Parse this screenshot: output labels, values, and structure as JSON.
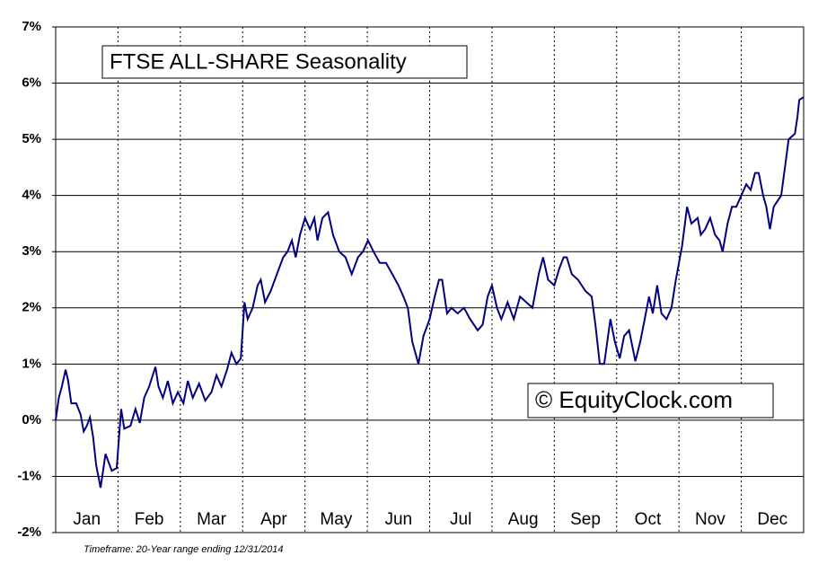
{
  "chart_data": {
    "type": "line",
    "title": "FTSE ALL-SHARE Seasonality",
    "watermark": "© EquityClock.com",
    "footnote": "Timeframe: 20-Year range ending 12/31/2014",
    "xlim": [
      0,
      12
    ],
    "xticks": [
      {
        "value": 0.5,
        "label": "Jan"
      },
      {
        "value": 1.5,
        "label": "Feb"
      },
      {
        "value": 2.5,
        "label": "Mar"
      },
      {
        "value": 3.5,
        "label": "Apr"
      },
      {
        "value": 4.5,
        "label": "May"
      },
      {
        "value": 5.5,
        "label": "Jun"
      },
      {
        "value": 6.5,
        "label": "Jul"
      },
      {
        "value": 7.5,
        "label": "Aug"
      },
      {
        "value": 8.5,
        "label": "Sep"
      },
      {
        "value": 9.5,
        "label": "Oct"
      },
      {
        "value": 10.5,
        "label": "Nov"
      },
      {
        "value": 11.5,
        "label": "Dec"
      }
    ],
    "xgrid": [
      1,
      2,
      3,
      4,
      5,
      6,
      7,
      8,
      9,
      10,
      11
    ],
    "ylim": [
      -2,
      7
    ],
    "yticks": [
      {
        "value": -2,
        "label": "-2%"
      },
      {
        "value": -1,
        "label": "-1%"
      },
      {
        "value": 0,
        "label": "0%"
      },
      {
        "value": 1,
        "label": "1%"
      },
      {
        "value": 2,
        "label": "2%"
      },
      {
        "value": 3,
        "label": "3%"
      },
      {
        "value": 4,
        "label": "4%"
      },
      {
        "value": 5,
        "label": "5%"
      },
      {
        "value": 6,
        "label": "6%"
      },
      {
        "value": 7,
        "label": "7%"
      }
    ],
    "grid": true,
    "series": [
      {
        "color": "#000080",
        "x": [
          0,
          0.05,
          0.1,
          0.16,
          0.2,
          0.25,
          0.33,
          0.4,
          0.45,
          0.5,
          0.55,
          0.6,
          0.65,
          0.72,
          0.76,
          0.8,
          0.85,
          0.9,
          0.98,
          1.05,
          1.1,
          1.2,
          1.28,
          1.35,
          1.42,
          1.5,
          1.6,
          1.65,
          1.72,
          1.8,
          1.88,
          1.96,
          2.05,
          2.12,
          2.2,
          2.3,
          2.4,
          2.5,
          2.58,
          2.66,
          2.75,
          2.82,
          2.9,
          2.97,
          3.03,
          3.08,
          3.16,
          3.24,
          3.29,
          3.36,
          3.45,
          3.55,
          3.65,
          3.72,
          3.79,
          3.85,
          3.92,
          4.0,
          4.08,
          4.15,
          4.2,
          4.28,
          4.37,
          4.45,
          4.55,
          4.65,
          4.75,
          4.85,
          4.93,
          5.01,
          5.1,
          5.2,
          5.3,
          5.4,
          5.5,
          5.58,
          5.65,
          5.72,
          5.82,
          5.9,
          6.0,
          6.08,
          6.15,
          6.2,
          6.28,
          6.35,
          6.45,
          6.55,
          6.65,
          6.77,
          6.85,
          6.93,
          7.0,
          7.08,
          7.15,
          7.25,
          7.35,
          7.45,
          7.55,
          7.65,
          7.75,
          7.82,
          7.9,
          8.0,
          8.08,
          8.15,
          8.2,
          8.28,
          8.38,
          8.5,
          8.6,
          8.66,
          8.73,
          8.8,
          8.9,
          8.97,
          9.05,
          9.12,
          9.2,
          9.3,
          9.38,
          9.45,
          9.52,
          9.58,
          9.65,
          9.72,
          9.8,
          9.88,
          9.95,
          10.05,
          10.13,
          10.2,
          10.3,
          10.35,
          10.42,
          10.5,
          10.58,
          10.65,
          10.7,
          10.78,
          10.85,
          10.92,
          11.0,
          11.08,
          11.15,
          11.22,
          11.28,
          11.35,
          11.4,
          11.46,
          11.52,
          11.58,
          11.64,
          11.7,
          11.76,
          11.86,
          11.9,
          11.93,
          12
        ],
        "values": [
          0,
          0.4,
          0.6,
          0.9,
          0.7,
          0.3,
          0.3,
          0.1,
          -0.2,
          -0.1,
          0.05,
          -0.3,
          -0.8,
          -1.2,
          -0.9,
          -0.6,
          -0.75,
          -0.9,
          -0.85,
          0.2,
          -0.15,
          -0.1,
          0.2,
          -0.05,
          0.4,
          0.6,
          0.95,
          0.6,
          0.4,
          0.7,
          0.3,
          0.5,
          0.3,
          0.7,
          0.4,
          0.65,
          0.35,
          0.5,
          0.8,
          0.6,
          0.9,
          1.2,
          1.0,
          1.1,
          2.1,
          1.8,
          2.0,
          2.4,
          2.5,
          2.1,
          2.3,
          2.6,
          2.9,
          3.0,
          3.2,
          2.9,
          3.3,
          3.6,
          3.4,
          3.6,
          3.2,
          3.6,
          3.7,
          3.3,
          3.0,
          2.9,
          2.6,
          2.9,
          3.0,
          3.2,
          3.0,
          2.8,
          2.8,
          2.6,
          2.4,
          2.2,
          2.0,
          1.4,
          1.0,
          1.5,
          1.8,
          2.2,
          2.5,
          2.5,
          1.9,
          2.0,
          1.9,
          2.0,
          1.8,
          1.6,
          1.7,
          2.2,
          2.4,
          2.0,
          1.8,
          2.1,
          1.8,
          2.2,
          2.1,
          2.0,
          2.6,
          2.9,
          2.5,
          2.4,
          2.7,
          2.9,
          2.9,
          2.6,
          2.5,
          2.3,
          2.2,
          1.7,
          1.0,
          1.0,
          1.8,
          1.4,
          1.1,
          1.5,
          1.6,
          1.05,
          1.4,
          1.8,
          2.2,
          1.9,
          2.4,
          1.9,
          1.8,
          2.0,
          2.5,
          3.1,
          3.8,
          3.5,
          3.6,
          3.3,
          3.4,
          3.6,
          3.3,
          3.2,
          3.0,
          3.5,
          3.8,
          3.8,
          4.0,
          4.2,
          4.1,
          4.4,
          4.4,
          4.0,
          3.8,
          3.4,
          3.8,
          3.9,
          4.0,
          4.5,
          5.0,
          5.1,
          5.4,
          5.7,
          5.75
        ]
      }
    ]
  }
}
